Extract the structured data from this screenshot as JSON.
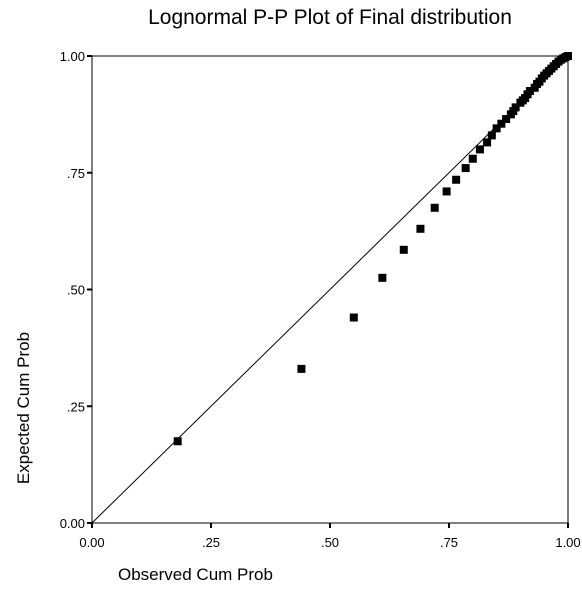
{
  "chart_data": {
    "type": "scatter",
    "title": "Lognormal P-P Plot of Final distribution",
    "xlabel": "Observed Cum Prob",
    "ylabel": "Expected Cum Prob",
    "xlim": [
      0,
      1
    ],
    "ylim": [
      0,
      1
    ],
    "xticks": [
      0,
      0.25,
      0.5,
      0.75,
      1
    ],
    "xtick_labels": [
      "0.00",
      ".25",
      ".50",
      ".75",
      "1.00"
    ],
    "yticks": [
      0,
      0.25,
      0.5,
      0.75,
      1
    ],
    "ytick_labels": [
      "0.00",
      ".25",
      ".50",
      ".75",
      "1.00"
    ],
    "grid": false,
    "reference_line": "y = x",
    "series": [
      {
        "marker": "square",
        "color": "#000000",
        "x": [
          0.18,
          0.44,
          0.55,
          0.61,
          0.655,
          0.69,
          0.72,
          0.745,
          0.765,
          0.785,
          0.8,
          0.815,
          0.83,
          0.84,
          0.85,
          0.86,
          0.87,
          0.88,
          0.885,
          0.89,
          0.9,
          0.905,
          0.91,
          0.915,
          0.92,
          0.93,
          0.935,
          0.94,
          0.945,
          0.95,
          0.955,
          0.96,
          0.965,
          0.97,
          0.975,
          0.98,
          0.985,
          0.99,
          0.995,
          1.0
        ],
        "y": [
          0.175,
          0.33,
          0.44,
          0.525,
          0.585,
          0.63,
          0.675,
          0.71,
          0.735,
          0.76,
          0.78,
          0.8,
          0.815,
          0.83,
          0.845,
          0.855,
          0.865,
          0.875,
          0.882,
          0.89,
          0.9,
          0.905,
          0.91,
          0.918,
          0.925,
          0.932,
          0.94,
          0.945,
          0.952,
          0.958,
          0.963,
          0.968,
          0.973,
          0.978,
          0.983,
          0.988,
          0.992,
          0.995,
          0.998,
          1.0
        ]
      }
    ]
  }
}
